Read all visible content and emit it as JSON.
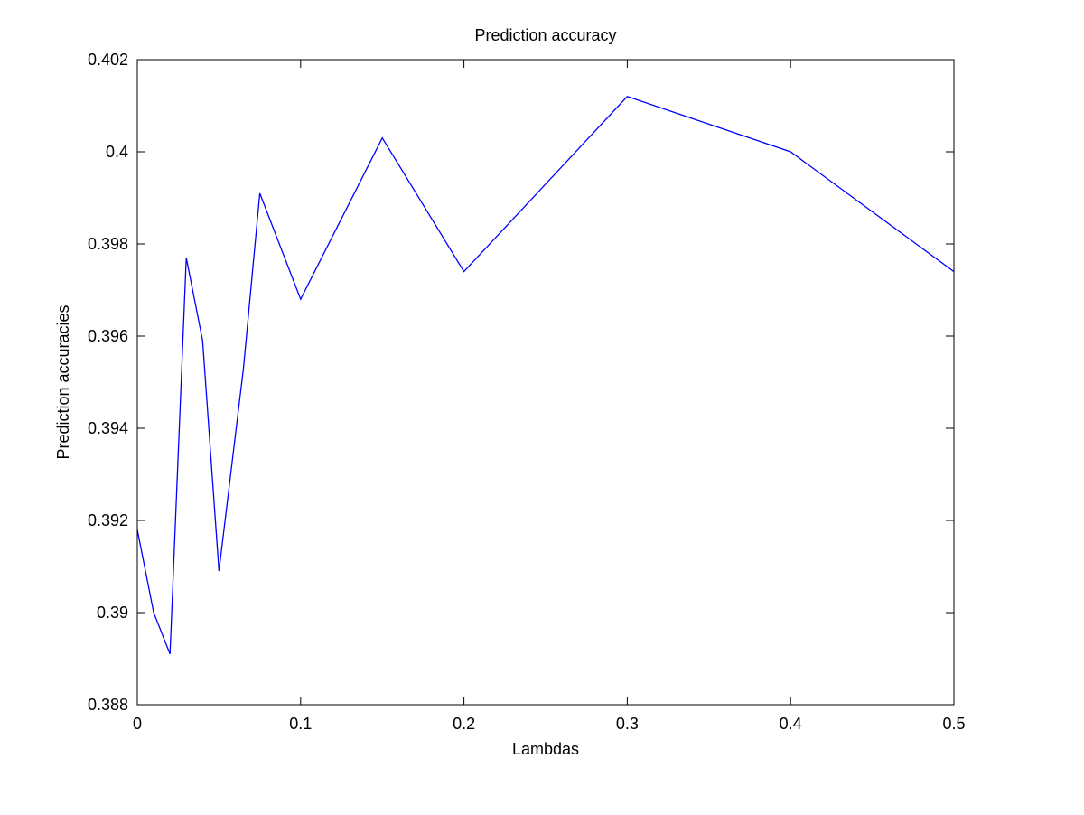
{
  "chart_data": {
    "type": "line",
    "title": "Prediction accuracy",
    "xlabel": "Lambdas",
    "ylabel": "Prediction accuracies",
    "xlim": [
      0,
      0.5
    ],
    "ylim": [
      0.388,
      0.402
    ],
    "x_ticks": [
      0,
      0.1,
      0.2,
      0.3,
      0.4,
      0.5
    ],
    "x_tick_labels": [
      "0",
      "0.1",
      "0.2",
      "0.3",
      "0.4",
      "0.5"
    ],
    "y_ticks": [
      0.388,
      0.39,
      0.392,
      0.394,
      0.396,
      0.398,
      0.4,
      0.402
    ],
    "y_tick_labels": [
      "0.388",
      "0.39",
      "0.392",
      "0.394",
      "0.396",
      "0.398",
      "0.4",
      "0.402"
    ],
    "grid": false,
    "legend": "none",
    "series": [
      {
        "color": "#0000ff",
        "x": [
          0,
          0.01,
          0.02,
          0.03,
          0.04,
          0.05,
          0.065,
          0.075,
          0.1,
          0.15,
          0.2,
          0.3,
          0.4,
          0.5
        ],
        "y": [
          0.3918,
          0.39,
          0.3891,
          0.3977,
          0.3959,
          0.3909,
          0.3953,
          0.3991,
          0.3968,
          0.4003,
          0.3974,
          0.4012,
          0.4,
          0.3974
        ]
      }
    ]
  }
}
